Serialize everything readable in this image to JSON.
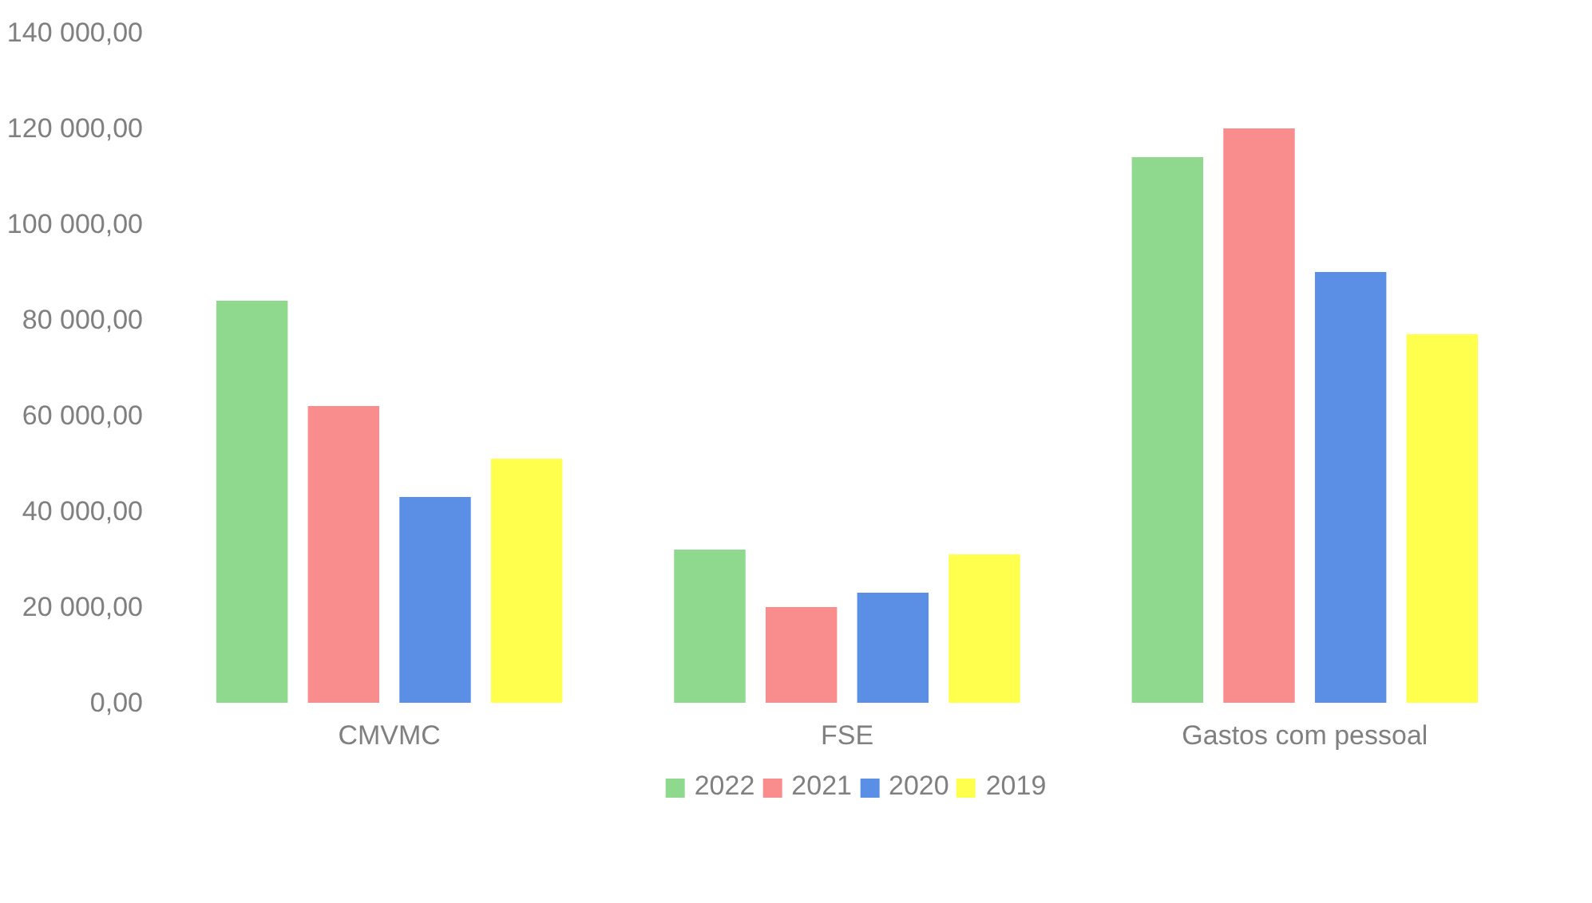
{
  "chart_data": {
    "type": "bar",
    "categories": [
      "CMVMC",
      "FSE",
      "Gastos com pessoal"
    ],
    "series": [
      {
        "name": "2022",
        "color": "#8fd98f",
        "values": [
          84000,
          32000,
          114000
        ]
      },
      {
        "name": "2021",
        "color": "#f98c8c",
        "values": [
          62000,
          20000,
          120000
        ]
      },
      {
        "name": "2020",
        "color": "#5b8fe6",
        "values": [
          43000,
          23000,
          90000
        ]
      },
      {
        "name": "2019",
        "color": "#ffff4d",
        "values": [
          51000,
          31000,
          77000
        ]
      }
    ],
    "ylim": [
      0,
      140000
    ],
    "yticks": [
      {
        "value": 0,
        "label": "0,00"
      },
      {
        "value": 20000,
        "label": "20 000,00"
      },
      {
        "value": 40000,
        "label": "40 000,00"
      },
      {
        "value": 60000,
        "label": "60 000,00"
      },
      {
        "value": 80000,
        "label": "80 000,00"
      },
      {
        "value": 100000,
        "label": "100 000,00"
      },
      {
        "value": 120000,
        "label": "120 000,00"
      },
      {
        "value": 140000,
        "label": "140 000,00"
      }
    ],
    "grid": false,
    "legend": "bottom"
  }
}
